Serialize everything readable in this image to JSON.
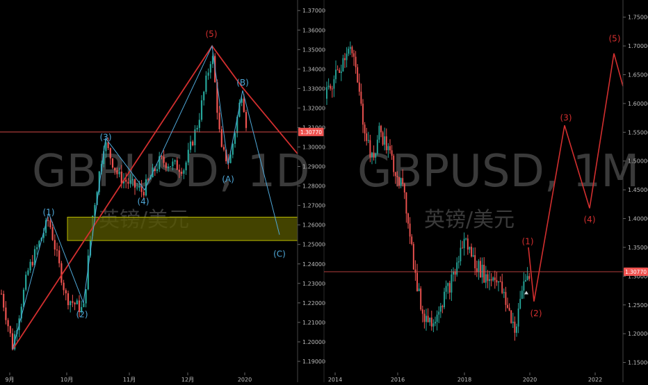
{
  "chart_data": [
    {
      "type": "candlestick",
      "symbol_watermark": "GBPUSD, 1D",
      "name_watermark": "英镑/美元",
      "price_axis_ticks": [
        "1.37000",
        "1.36000",
        "1.35000",
        "1.34000",
        "1.33000",
        "1.32000",
        "1.31000",
        "1.30000",
        "1.29000",
        "1.28000",
        "1.27000",
        "1.26000",
        "1.25000",
        "1.24000",
        "1.23000",
        "1.22000",
        "1.21000",
        "1.20000",
        "1.19000"
      ],
      "ylim": [
        1.185,
        1.374
      ],
      "time_axis_ticks": [
        "9月",
        "10月",
        "11月",
        "12月",
        "2020"
      ],
      "current_price": 1.3077,
      "current_price_label": "1.30770",
      "colors": {
        "up": "#26a69a",
        "down": "#ef5350",
        "impulse": "#d32f2f",
        "corrective": "#4fa8d8",
        "zone_fill": "#5a5a00",
        "zone_border": "#b8b800",
        "price_line": "#ef5350"
      },
      "zone": {
        "price_top": 1.264,
        "price_bottom": 1.252
      },
      "wave_labels": [
        {
          "label": "(1)",
          "price": 1.2665,
          "color": "corrective"
        },
        {
          "label": "(2)",
          "price": 1.214,
          "color": "corrective"
        },
        {
          "label": "(3)",
          "price": 1.305,
          "color": "corrective"
        },
        {
          "label": "(4)",
          "price": 1.272,
          "color": "corrective"
        },
        {
          "label": "(5)",
          "price": 1.358,
          "color": "impulse"
        },
        {
          "label": "(A)",
          "price": 1.2835,
          "color": "corrective"
        },
        {
          "label": "(B)",
          "price": 1.333,
          "color": "corrective"
        },
        {
          "label": "(C)",
          "price": 1.245,
          "color": "corrective"
        }
      ],
      "impulse_path": [
        1.196,
        1.3518,
        1.3304,
        1.2965
      ],
      "corrective_path": [
        1.196,
        1.266,
        1.22,
        1.3045,
        1.278,
        1.3518,
        1.291,
        1.329,
        1.255
      ]
    },
    {
      "type": "candlestick",
      "symbol_watermark": "GBPUSD, 1M",
      "name_watermark": "英镑/美元",
      "price_axis_ticks": [
        "1.75000",
        "1.70000",
        "1.65000",
        "1.60000",
        "1.55000",
        "1.50000",
        "1.45000",
        "1.40000",
        "1.35000",
        "1.30000",
        "1.25000",
        "1.20000",
        "1.15000"
      ],
      "ylim": [
        1.135,
        1.775
      ],
      "time_axis_ticks": [
        "2014",
        "2016",
        "2018",
        "2020",
        "2022"
      ],
      "current_price": 1.3077,
      "current_price_label": "1.30770",
      "wave_labels": [
        {
          "label": "(1)",
          "price": 1.36
        },
        {
          "label": "(2)",
          "price": 1.235
        },
        {
          "label": "(3)",
          "price": 1.575
        },
        {
          "label": "(4)",
          "price": 1.398
        },
        {
          "label": "(5)",
          "price": 1.713
        }
      ],
      "projection_path": [
        1.35,
        1.256,
        1.562,
        1.418,
        1.687,
        1.63
      ]
    }
  ]
}
